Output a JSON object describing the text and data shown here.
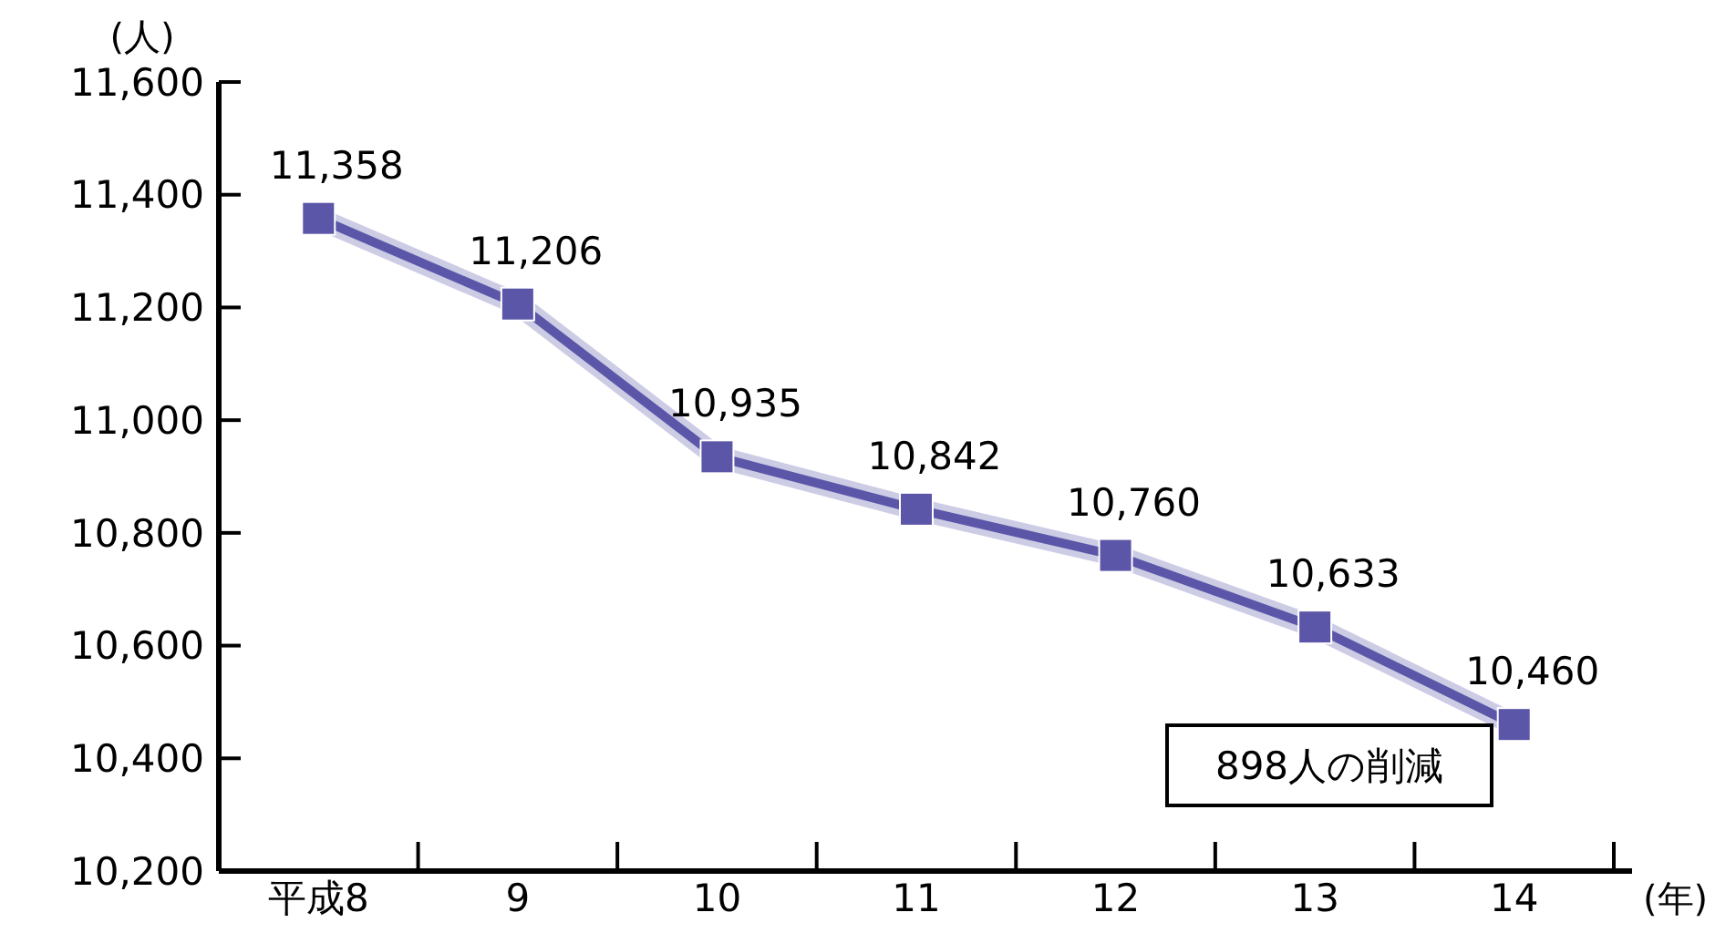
{
  "chart_data": {
    "type": "line",
    "ylabel": "(人)",
    "xlabel": "(年)",
    "categories": [
      "平成8",
      "9",
      "10",
      "11",
      "12",
      "13",
      "14"
    ],
    "series": [
      {
        "color": "#5b56a8",
        "values": [
          11358,
          11206,
          10935,
          10842,
          10760,
          10633,
          10460
        ],
        "value_labels": [
          "11,358",
          "11,206",
          "10,935",
          "10,842",
          "10,760",
          "10,633",
          "10,460"
        ]
      }
    ],
    "ylim": [
      10200,
      11600
    ],
    "yticks": [
      {
        "value": 10200,
        "label": "10,200"
      },
      {
        "value": 10400,
        "label": "10,400"
      },
      {
        "value": 10600,
        "label": "10,600"
      },
      {
        "value": 10800,
        "label": "10,800"
      },
      {
        "value": 11000,
        "label": "11,000"
      },
      {
        "value": 11200,
        "label": "11,200"
      },
      {
        "value": 11400,
        "label": "11,400"
      },
      {
        "value": 11600,
        "label": "11,600"
      }
    ],
    "marker": "square",
    "line_style": "solid",
    "grid": false,
    "annotations": [
      "898人の削減"
    ]
  }
}
